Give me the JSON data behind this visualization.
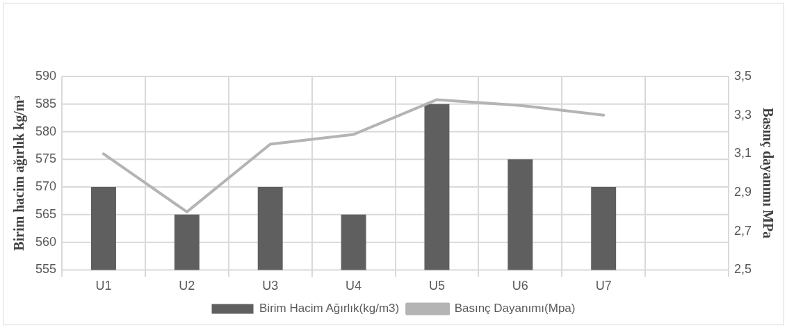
{
  "chart_data": {
    "type": "bar",
    "categories": [
      "U1",
      "U2",
      "U3",
      "U4",
      "U5",
      "U6",
      "U7",
      null
    ],
    "ylabel": "Birim hacim ağırlık kg/m³",
    "y2label": "Basınç dayanımı MPa",
    "series": [
      {
        "name": "Birim Hacim Ağırlık(kg/m3)",
        "color": "#5f5f5f",
        "values": [
          570,
          565,
          570,
          565,
          585,
          575,
          570,
          null
        ]
      },
      {
        "name": "Basınç Dayanımı(Mpa)",
        "type": "line",
        "axis": "y2",
        "color": "#b4b4b4",
        "values": [
          3.1,
          2.8,
          3.15,
          3.2,
          3.38,
          3.35,
          3.3,
          null
        ]
      }
    ],
    "ylim": [
      555,
      590
    ],
    "yticks": [
      555,
      560,
      565,
      570,
      575,
      580,
      585,
      590
    ],
    "y2lim": [
      2.5,
      3.5
    ],
    "y2ticks": [
      {
        "value": 2.5,
        "label": "2,5"
      },
      {
        "value": 2.7,
        "label": "2,7"
      },
      {
        "value": 2.9,
        "label": "2,9"
      },
      {
        "value": 3.1,
        "label": "3,1"
      },
      {
        "value": 3.3,
        "label": "3,3"
      },
      {
        "value": 3.5,
        "label": "3,5"
      }
    ],
    "grid": true,
    "legend": "bottom",
    "marker": "none"
  }
}
